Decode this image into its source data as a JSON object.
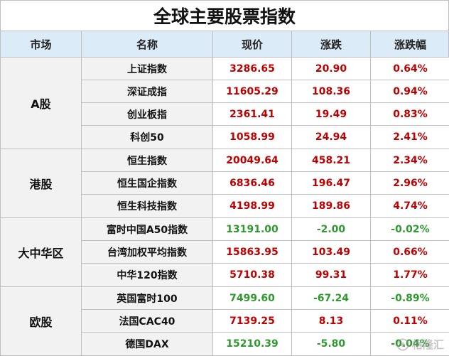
{
  "title": "全球主要股票指数",
  "headers": [
    "市场",
    "名称",
    "现价",
    "涨跌",
    "涨跌幅"
  ],
  "groups": [
    {
      "market": "A股",
      "rows": [
        {
          "name": "上证指数",
          "price": "3286.65",
          "change": "20.90",
          "pct": "0.64%",
          "dir": "up"
        },
        {
          "name": "深证成指",
          "price": "11605.29",
          "change": "108.36",
          "pct": "0.94%",
          "dir": "up"
        },
        {
          "name": "创业板指",
          "price": "2361.41",
          "change": "19.49",
          "pct": "0.83%",
          "dir": "up"
        },
        {
          "name": "科创50",
          "price": "1058.99",
          "change": "24.94",
          "pct": "2.41%",
          "dir": "up"
        }
      ]
    },
    {
      "market": "港股",
      "rows": [
        {
          "name": "恒生指数",
          "price": "20049.64",
          "change": "458.21",
          "pct": "2.34%",
          "dir": "up"
        },
        {
          "name": "恒生国企指数",
          "price": "6836.46",
          "change": "196.47",
          "pct": "2.96%",
          "dir": "up"
        },
        {
          "name": "恒生科技指数",
          "price": "4198.99",
          "change": "189.86",
          "pct": "4.74%",
          "dir": "up"
        }
      ]
    },
    {
      "market": "大中华区",
      "rows": [
        {
          "name": "富时中国A50指数",
          "price": "13191.00",
          "change": "-2.00",
          "pct": "-0.02%",
          "dir": "down"
        },
        {
          "name": "台湾加权平均指数",
          "price": "15863.95",
          "change": "103.49",
          "pct": "0.66%",
          "dir": "up"
        },
        {
          "name": "中华120指数",
          "price": "5710.38",
          "change": "99.31",
          "pct": "1.77%",
          "dir": "up"
        }
      ]
    },
    {
      "market": "欧股",
      "rows": [
        {
          "name": "英国富时100",
          "price": "7499.60",
          "change": "-67.24",
          "pct": "-0.89%",
          "dir": "down"
        },
        {
          "name": "法国CAC40",
          "price": "7139.25",
          "change": "8.13",
          "pct": "0.11%",
          "dir": "up"
        },
        {
          "name": "德国DAX",
          "price": "15210.39",
          "change": "-5.80",
          "pct": "-0.04%",
          "dir": "down"
        }
      ]
    }
  ],
  "colors": {
    "up": "#c00000",
    "down": "#2e9a2e",
    "header_bg": "#dcebf8"
  },
  "watermark": {
    "text": "格隆汇",
    "icon": "gelonghui-logo-icon"
  }
}
